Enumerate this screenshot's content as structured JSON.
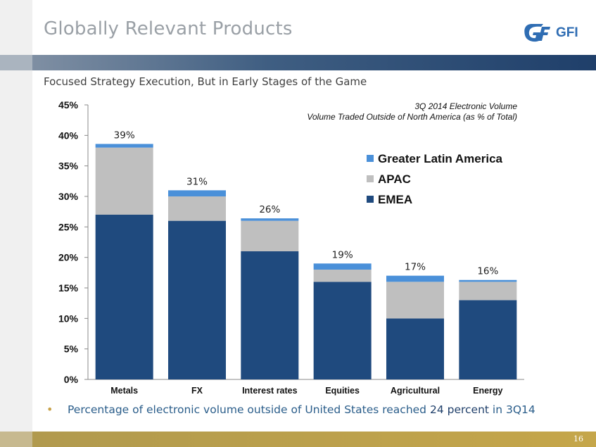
{
  "header": {
    "title": "Globally Relevant Products",
    "logo_text": "GFI"
  },
  "subtitle": "Focused Strategy Execution, But in Early Stages of the Game",
  "chart_data": {
    "type": "bar",
    "stacked": true,
    "title_line1": "3Q 2014 Electronic Volume",
    "title_line2": "Volume Traded Outside of North America (as % of Total)",
    "categories": [
      "Metals",
      "FX",
      "Interest rates",
      "Equities",
      "Agricultural",
      "Energy"
    ],
    "series": [
      {
        "name": "EMEA",
        "color": "#1f4a7e",
        "values": [
          27,
          26,
          21,
          16,
          10,
          13
        ]
      },
      {
        "name": "APAC",
        "color": "#bfbfbf",
        "values": [
          11,
          4,
          5,
          2,
          6,
          3
        ]
      },
      {
        "name": "Greater Latin America",
        "color": "#4a90d9",
        "values": [
          0.6,
          1,
          0.4,
          1,
          1,
          0.3
        ]
      }
    ],
    "totals_labels": [
      "39%",
      "31%",
      "26%",
      "19%",
      "17%",
      "16%"
    ],
    "ylim": [
      0,
      45
    ],
    "yticks": [
      "0%",
      "5%",
      "10%",
      "15%",
      "20%",
      "25%",
      "30%",
      "35%",
      "40%",
      "45%"
    ],
    "legend_order": [
      "Greater Latin America",
      "APAC",
      "EMEA"
    ],
    "legend_position": "top-right"
  },
  "bullet": {
    "text_before": "Percentage of electronic volume outside of United States reached ",
    "highlight": "24 percent",
    "text_after": " in 3Q14"
  },
  "footer": {
    "page_number": "16"
  }
}
